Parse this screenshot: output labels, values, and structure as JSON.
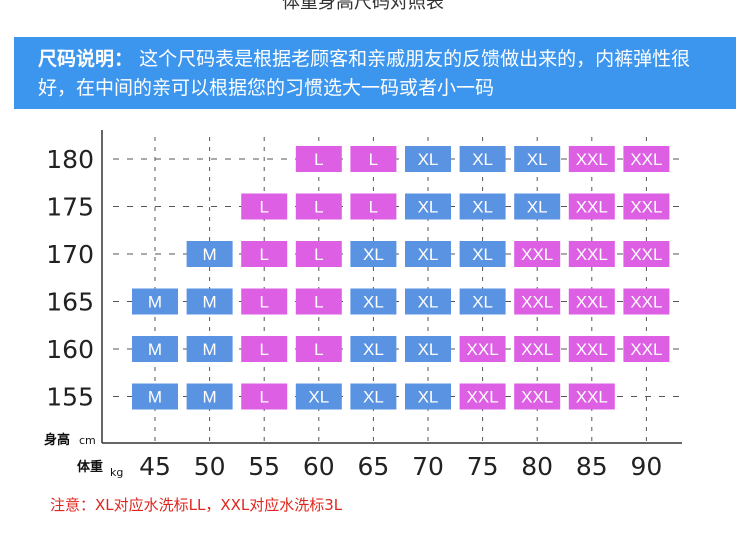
{
  "header": {
    "cropped_title": "体重身高尺码对照表"
  },
  "banner": {
    "lead": "尺码说明：",
    "text": "这个尺码表是根据老顾客和亲戚朋友的反馈做出来的，内裤弹性很好，在中间的亲可以根据您的习惯选大一码或者小一码"
  },
  "note": "注意：XL对应水洗标LL，XXL对应水洗标3L",
  "colors": {
    "blue": "#5b93e3",
    "pink": "#dd5fe4",
    "banner": "#3d96ee",
    "note": "#e0261e"
  },
  "chart_data": {
    "type": "table",
    "y_axis_label": "身高",
    "y_axis_unit": "cm",
    "x_axis_label": "体重",
    "x_axis_unit": "kg",
    "x_ticks": [
      45,
      50,
      55,
      60,
      65,
      70,
      75,
      80,
      85,
      90
    ],
    "y_ticks": [
      180,
      175,
      170,
      165,
      160,
      155
    ],
    "grid": true,
    "rows": [
      {
        "height": 180,
        "cells": [
          "",
          "",
          "",
          "L",
          "L",
          "XL",
          "XL",
          "XL",
          "XXL",
          "XXL"
        ]
      },
      {
        "height": 175,
        "cells": [
          "",
          "",
          "L",
          "L",
          "L",
          "XL",
          "XL",
          "XL",
          "XXL",
          "XXL"
        ]
      },
      {
        "height": 170,
        "cells": [
          "",
          "M",
          "L",
          "L",
          "XL",
          "XL",
          "XL",
          "XXL",
          "XXL",
          "XXL"
        ]
      },
      {
        "height": 165,
        "cells": [
          "M",
          "M",
          "L",
          "L",
          "XL",
          "XL",
          "XL",
          "XXL",
          "XXL",
          "XXL"
        ]
      },
      {
        "height": 160,
        "cells": [
          "M",
          "M",
          "L",
          "L",
          "XL",
          "XL",
          "XXL",
          "XXL",
          "XXL",
          "XXL"
        ]
      },
      {
        "height": 155,
        "cells": [
          "M",
          "M",
          "L",
          "XL",
          "XL",
          "XL",
          "XXL",
          "XXL",
          "XXL",
          ""
        ]
      }
    ],
    "size_colors": {
      "M": "blue",
      "L": "pink",
      "XL": "blue",
      "XXL": "pink"
    }
  }
}
